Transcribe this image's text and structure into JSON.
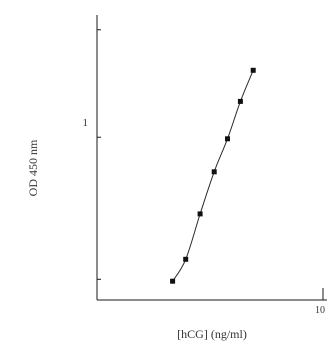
{
  "chart_data": {
    "type": "line",
    "title": "",
    "xlabel": "[hCG] (ng/ml)",
    "ylabel": "OD 450 nm",
    "xscale": "log",
    "yscale": "log",
    "xlim": [
      1,
      10
    ],
    "ylim": [
      0.35,
      2.2
    ],
    "x_tick_labels": [
      "10"
    ],
    "y_tick_labels": [
      "1"
    ],
    "grid": false,
    "series": [
      {
        "x": [
          2.16,
          2.47,
          2.86,
          3.3,
          3.78,
          4.31,
          4.91
        ],
        "y": [
          0.395,
          0.455,
          0.61,
          0.8,
          0.99,
          1.26,
          1.54
        ]
      }
    ],
    "colors": {
      "line": "#2a2a2a",
      "marker": "#111111",
      "axis": "#1a1a1a"
    }
  }
}
